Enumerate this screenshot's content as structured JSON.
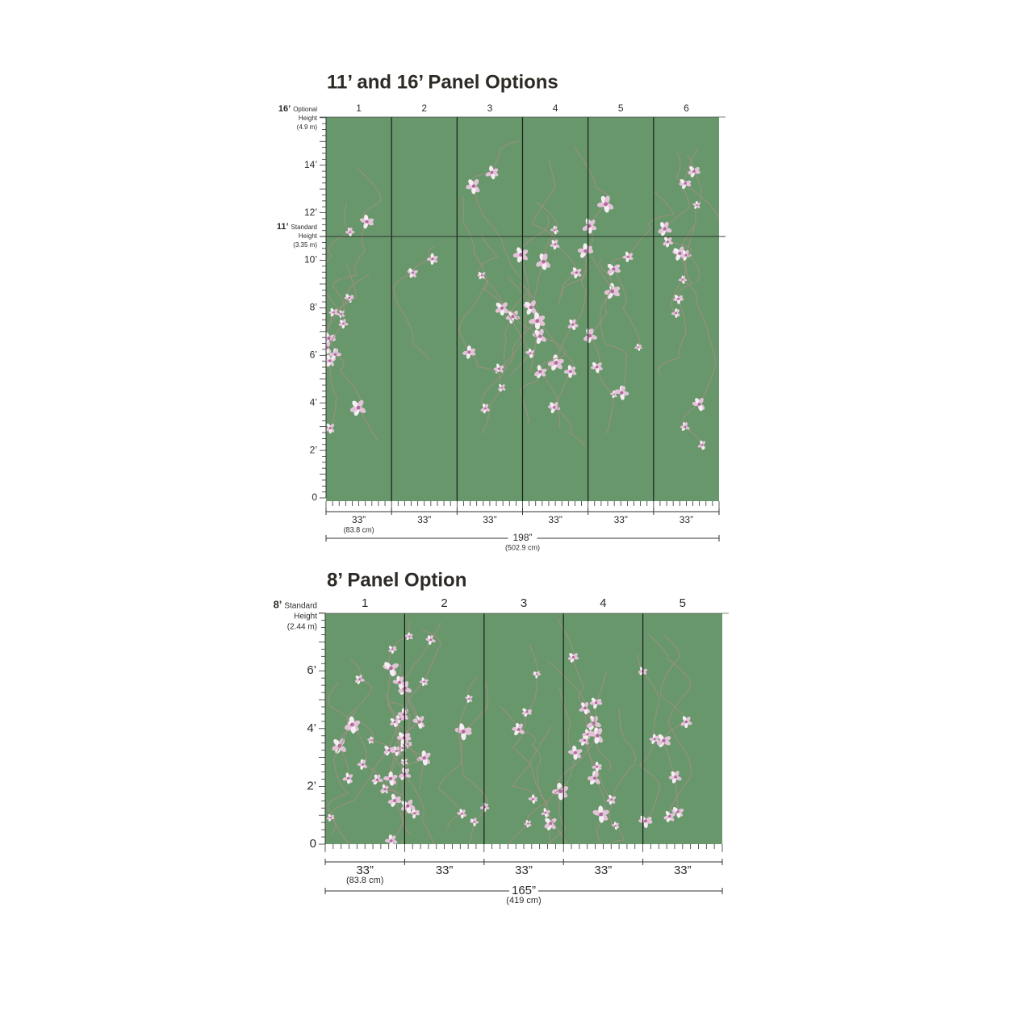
{
  "sections": [
    {
      "title": "11’ and 16’ Panel Options",
      "top_height": {
        "value": "16’",
        "label_line1": "Optional",
        "label_line2": "Height",
        "metric": "(4.9 m)"
      },
      "mid_height": {
        "value": "11’",
        "label_line1": "Standard",
        "label_line2": "Height",
        "metric": "(3.35 m)"
      },
      "panels": [
        "1",
        "2",
        "3",
        "4",
        "5",
        "6"
      ],
      "height_labels": [
        "14’",
        "12’",
        "10’",
        "8’",
        "6’",
        "4’",
        "2’",
        "0"
      ],
      "panel_widths": [
        "33”",
        "33”",
        "33”",
        "33”",
        "33”",
        "33”"
      ],
      "panel_width_metric": "(83.8 cm)",
      "total_width": "198”",
      "total_width_metric": "(502.9 cm)"
    },
    {
      "title": "8’ Panel Option",
      "top_height": {
        "value": "8’",
        "label_line1": "Standard",
        "label_line2": "Height",
        "metric": "(2.44 m)"
      },
      "panels": [
        "1",
        "2",
        "3",
        "4",
        "5"
      ],
      "height_labels": [
        "6’",
        "4’",
        "2’",
        "0"
      ],
      "panel_widths": [
        "33”",
        "33”",
        "33”",
        "33”",
        "33”"
      ],
      "panel_width_metric": "(83.8 cm)",
      "total_width": "165”",
      "total_width_metric": "(419 cm)"
    }
  ]
}
